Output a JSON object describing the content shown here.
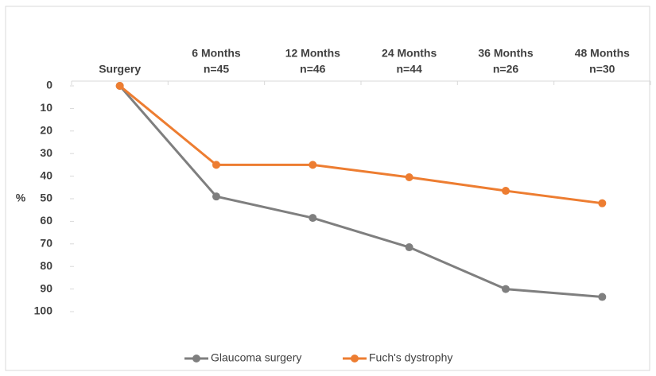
{
  "chart_data": {
    "type": "line",
    "y_label": "%",
    "categories": [
      [
        "Surgery"
      ],
      [
        "6 Months",
        "n=45"
      ],
      [
        "12 Months",
        "n=46"
      ],
      [
        "24 Months",
        "n=44"
      ],
      [
        "36 Months",
        "n=26"
      ],
      [
        "48 Months",
        "n=30"
      ]
    ],
    "series": [
      {
        "name": "Glaucoma surgery",
        "color": "#7f7f7f",
        "values": [
          0,
          49,
          58.5,
          71.5,
          90,
          93.5
        ]
      },
      {
        "name": "Fuch's dystrophy",
        "color": "#ed7d31",
        "values": [
          0,
          35,
          35,
          40.5,
          46.5,
          52
        ]
      }
    ],
    "ylim": [
      0,
      100
    ],
    "yticks": [
      0,
      10,
      20,
      30,
      40,
      50,
      60,
      70,
      80,
      90,
      100
    ],
    "y_inverted": true,
    "grid": false,
    "legend": "bottom"
  }
}
